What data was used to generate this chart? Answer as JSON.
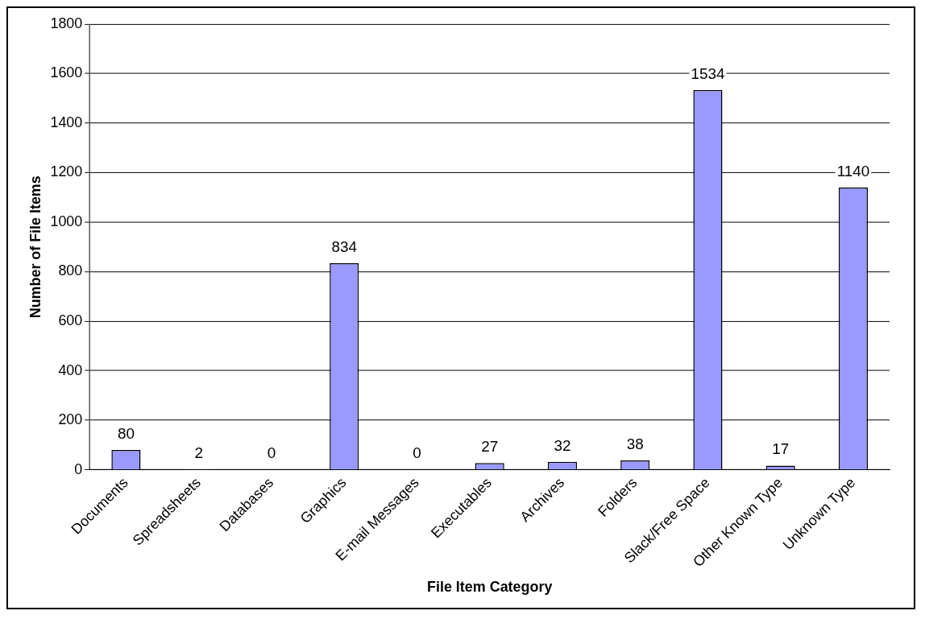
{
  "chart_data": {
    "type": "bar",
    "xlabel": "File Item Category",
    "ylabel": "Number of File Items",
    "categories": [
      "Documents",
      "Spreadsheets",
      "Databases",
      "Graphics",
      "E-mail Messages",
      "Executables",
      "Archives",
      "Folders",
      "Slack/Free Space",
      "Other Known Type",
      "Unknown Type"
    ],
    "values": [
      80,
      2,
      0,
      834,
      0,
      27,
      32,
      38,
      1534,
      17,
      1140
    ],
    "color": "#9999ff",
    "ylim": [
      0,
      1800
    ],
    "yticks": [
      0,
      200,
      400,
      600,
      800,
      1000,
      1200,
      1400,
      1600,
      1800
    ],
    "grid": "y",
    "legend": false,
    "data_labels": true
  }
}
